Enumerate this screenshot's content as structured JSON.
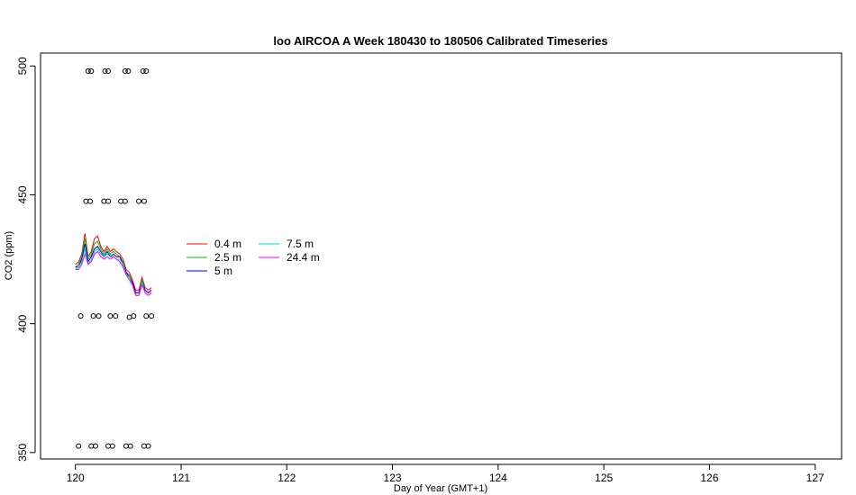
{
  "chart_data": {
    "type": "line",
    "title": "loo AIRCOA A  Week 180430 to 180506  Calibrated Timeseries",
    "xlabel": "Day of Year (GMT+1)",
    "ylabel": "CO2 (ppm)",
    "xlim": [
      119.67,
      127.25
    ],
    "ylim": [
      347.5,
      505
    ],
    "x_ticks": [
      120,
      121,
      122,
      123,
      124,
      125,
      126,
      127
    ],
    "y_ticks": [
      350,
      400,
      450,
      500
    ],
    "x_tick_labels": [
      "120",
      "121",
      "122",
      "123",
      "124",
      "125",
      "126",
      "127"
    ],
    "y_tick_labels": [
      "350",
      "400",
      "450",
      "500"
    ],
    "grid": false,
    "legend_position": "left-center",
    "series": [
      {
        "name": "0.4 m",
        "color": "#ff0000",
        "x": [
          120.0,
          120.03,
          120.06,
          120.09,
          120.12,
          120.15,
          120.18,
          120.21,
          120.24,
          120.27,
          120.3,
          120.33,
          120.36,
          120.39,
          120.42,
          120.45,
          120.48,
          120.51,
          120.54,
          120.57,
          120.6,
          120.63,
          120.66,
          120.69,
          120.72
        ],
        "y": [
          423,
          424,
          427,
          435,
          426,
          428,
          433,
          434,
          430,
          428,
          430,
          428,
          429,
          428,
          427,
          425,
          421,
          420,
          417,
          413,
          413,
          418,
          414,
          413,
          414
        ]
      },
      {
        "name": "2.5 m",
        "color": "#00c000",
        "x": [
          120.0,
          120.03,
          120.06,
          120.09,
          120.12,
          120.15,
          120.18,
          120.21,
          120.24,
          120.27,
          120.3,
          120.33,
          120.36,
          120.39,
          120.42,
          120.45,
          120.48,
          120.51,
          120.54,
          120.57,
          120.6,
          120.63,
          120.66,
          120.69,
          120.72
        ],
        "y": [
          422,
          423,
          426,
          433,
          425,
          427,
          431,
          432,
          429,
          427,
          429,
          427,
          428,
          427,
          426,
          424,
          420,
          419,
          416,
          412,
          412,
          417,
          413,
          412,
          413
        ]
      },
      {
        "name": "5 m",
        "color": "#0000cc",
        "x": [
          120.0,
          120.03,
          120.06,
          120.09,
          120.12,
          120.15,
          120.18,
          120.21,
          120.24,
          120.27,
          120.3,
          120.33,
          120.36,
          120.39,
          120.42,
          120.45,
          120.48,
          120.51,
          120.54,
          120.57,
          120.6,
          120.63,
          120.66,
          120.69,
          120.72
        ],
        "y": [
          422,
          422,
          425,
          431,
          424,
          426,
          429,
          430,
          428,
          426,
          428,
          426,
          427,
          426,
          426,
          423,
          420,
          418,
          416,
          412,
          412,
          416,
          413,
          412,
          413
        ]
      },
      {
        "name": "7.5 m",
        "color": "#00d0d0",
        "x": [
          120.0,
          120.03,
          120.06,
          120.09,
          120.12,
          120.15,
          120.18,
          120.21,
          120.24,
          120.27,
          120.3,
          120.33,
          120.36,
          120.39,
          120.42,
          120.45,
          120.48,
          120.51,
          120.54,
          120.57,
          120.6,
          120.63,
          120.66,
          120.69,
          120.72
        ],
        "y": [
          421,
          422,
          424,
          429,
          423,
          425,
          428,
          429,
          427,
          426,
          427,
          426,
          426,
          425,
          425,
          423,
          419,
          418,
          415,
          411,
          411,
          416,
          412,
          411,
          412
        ]
      },
      {
        "name": "24.4 m",
        "color": "#ff00ff",
        "x": [
          120.0,
          120.03,
          120.06,
          120.09,
          120.12,
          120.15,
          120.18,
          120.21,
          120.24,
          120.27,
          120.3,
          120.33,
          120.36,
          120.39,
          120.42,
          120.45,
          120.48,
          120.51,
          120.54,
          120.57,
          120.6,
          120.63,
          120.66,
          120.69,
          120.72
        ],
        "y": [
          421,
          421,
          423,
          427,
          423,
          424,
          427,
          428,
          426,
          425,
          426,
          425,
          426,
          425,
          424,
          422,
          419,
          417,
          415,
          411,
          411,
          415,
          412,
          411,
          412
        ]
      }
    ],
    "point_series": {
      "marker": "open-circle",
      "color": "#000000",
      "points": [
        {
          "x": 120.12,
          "y": 498
        },
        {
          "x": 120.15,
          "y": 498
        },
        {
          "x": 120.28,
          "y": 498
        },
        {
          "x": 120.31,
          "y": 498
        },
        {
          "x": 120.47,
          "y": 498
        },
        {
          "x": 120.5,
          "y": 498
        },
        {
          "x": 120.64,
          "y": 498
        },
        {
          "x": 120.67,
          "y": 498
        },
        {
          "x": 120.1,
          "y": 447.5
        },
        {
          "x": 120.14,
          "y": 447.5
        },
        {
          "x": 120.27,
          "y": 447.5
        },
        {
          "x": 120.31,
          "y": 447.5
        },
        {
          "x": 120.43,
          "y": 447.5
        },
        {
          "x": 120.47,
          "y": 447.5
        },
        {
          "x": 120.6,
          "y": 447.5
        },
        {
          "x": 120.65,
          "y": 447.5
        },
        {
          "x": 120.05,
          "y": 403
        },
        {
          "x": 120.17,
          "y": 403
        },
        {
          "x": 120.22,
          "y": 403
        },
        {
          "x": 120.33,
          "y": 403
        },
        {
          "x": 120.38,
          "y": 403
        },
        {
          "x": 120.51,
          "y": 402.5
        },
        {
          "x": 120.55,
          "y": 403
        },
        {
          "x": 120.67,
          "y": 403
        },
        {
          "x": 120.72,
          "y": 403
        },
        {
          "x": 120.03,
          "y": 352.5
        },
        {
          "x": 120.15,
          "y": 352.5
        },
        {
          "x": 120.19,
          "y": 352.5
        },
        {
          "x": 120.31,
          "y": 352.5
        },
        {
          "x": 120.35,
          "y": 352.5
        },
        {
          "x": 120.48,
          "y": 352.5
        },
        {
          "x": 120.52,
          "y": 352.5
        },
        {
          "x": 120.65,
          "y": 352.5
        },
        {
          "x": 120.69,
          "y": 352.5
        }
      ]
    }
  }
}
